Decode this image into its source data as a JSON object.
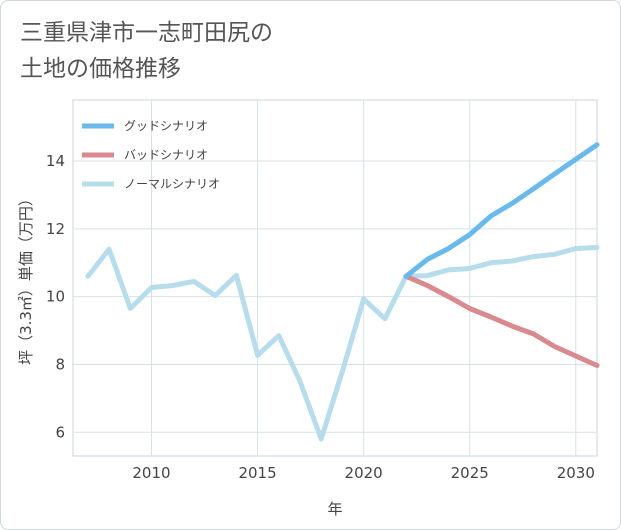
{
  "title": "三重県津市一志町田尻の\n土地の価格推移",
  "chart_data": {
    "type": "line",
    "xlabel": "年",
    "ylabel": "坪（3.3㎡）単価（万円）",
    "xlim": [
      2006.3,
      2031
    ],
    "ylim": [
      5.3,
      15.8
    ],
    "xticks": [
      2010,
      2015,
      2020,
      2025,
      2030
    ],
    "yticks": [
      6,
      8,
      10,
      12,
      14
    ],
    "legend_position": "top-left",
    "series": [
      {
        "name": "グッドシナリオ",
        "color": "#6ab9ec",
        "x": [
          2022,
          2023,
          2024,
          2025,
          2026,
          2027,
          2028,
          2029,
          2030,
          2031
        ],
        "values": [
          10.6,
          11.1,
          11.42,
          11.83,
          12.38,
          12.75,
          13.18,
          13.62,
          14.05,
          14.48
        ]
      },
      {
        "name": "バッドシナリオ",
        "color": "#d88a8f",
        "x": [
          2022,
          2023,
          2024,
          2025,
          2026,
          2027,
          2028,
          2029,
          2030,
          2031
        ],
        "values": [
          10.6,
          10.33,
          10.0,
          9.65,
          9.4,
          9.13,
          8.9,
          8.53,
          8.25,
          7.97
        ]
      },
      {
        "name": "ノーマルシナリオ",
        "color": "#b7dcec",
        "x": [
          2007,
          2008,
          2009,
          2010,
          2011,
          2012,
          2013,
          2014,
          2015,
          2016,
          2017,
          2018,
          2019,
          2020,
          2021,
          2022,
          2023,
          2024,
          2025,
          2026,
          2027,
          2028,
          2029,
          2030,
          2031
        ],
        "values": [
          10.6,
          11.4,
          9.65,
          10.27,
          10.33,
          10.45,
          10.03,
          10.63,
          8.27,
          8.85,
          7.5,
          5.8,
          7.8,
          9.93,
          9.35,
          10.6,
          10.62,
          10.79,
          10.83,
          11.0,
          11.05,
          11.18,
          11.25,
          11.42,
          11.45
        ]
      }
    ]
  }
}
